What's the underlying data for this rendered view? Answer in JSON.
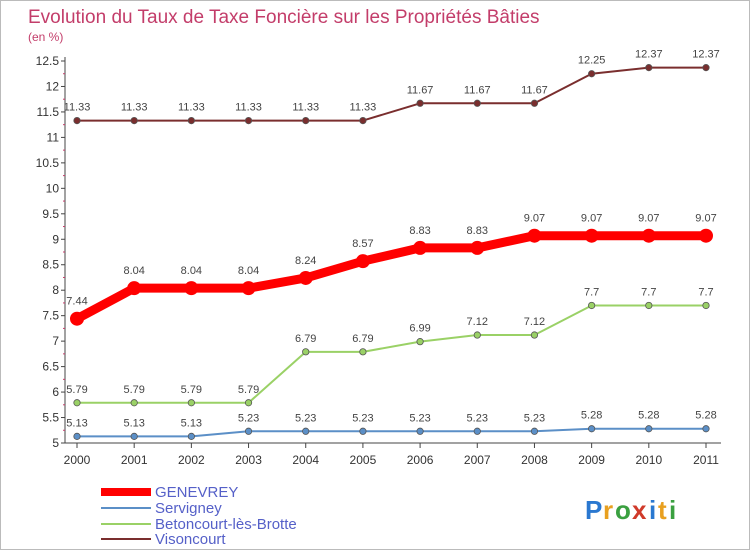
{
  "chart_data": {
    "type": "line",
    "title": "Evolution du Taux de Taxe Foncière sur les Propriétés Bâties",
    "ylabel": "(en %)",
    "xlabel": "",
    "ylim": [
      5,
      12.5
    ],
    "yticks": [
      "5",
      "5.5",
      "6",
      "6.5",
      "7",
      "7.5",
      "8",
      "8.5",
      "9",
      "9.5",
      "10",
      "10.5",
      "11",
      "11.5",
      "12",
      "12.5"
    ],
    "categories": [
      "2000",
      "2001",
      "2002",
      "2003",
      "2004",
      "2005",
      "2006",
      "2007",
      "2008",
      "2009",
      "2010",
      "2011"
    ],
    "series": [
      {
        "name": "GENEVREY",
        "color": "#ff0000",
        "values": [
          7.44,
          8.04,
          8.04,
          8.04,
          8.24,
          8.57,
          8.83,
          8.83,
          9.07,
          9.07,
          9.07,
          9.07
        ],
        "labels": [
          "7.44",
          "8.04",
          "8.04",
          "8.04",
          "8.24",
          "8.57",
          "8.83",
          "8.83",
          "9.07",
          "9.07",
          "9.07",
          "9.07"
        ]
      },
      {
        "name": "Servigney",
        "color": "#5b8fc7",
        "values": [
          5.13,
          5.13,
          5.13,
          5.23,
          5.23,
          5.23,
          5.23,
          5.23,
          5.23,
          5.28,
          5.28,
          5.28
        ],
        "labels": [
          "5.13",
          "5.13",
          "5.13",
          "5.23",
          "5.23",
          "5.23",
          "5.23",
          "5.23",
          "5.23",
          "5.28",
          "5.28",
          "5.28"
        ]
      },
      {
        "name": "Betoncourt-lès-Brotte",
        "color": "#9ad166",
        "values": [
          5.79,
          5.79,
          5.79,
          5.79,
          6.79,
          6.79,
          6.99,
          7.12,
          7.12,
          7.7,
          7.7,
          7.7
        ],
        "labels": [
          "5.79",
          "5.79",
          "5.79",
          "5.79",
          "6.79",
          "6.79",
          "6.99",
          "7.12",
          "7.12",
          "7.7",
          "7.7",
          "7.7"
        ]
      },
      {
        "name": "Visoncourt",
        "color": "#7a2e2e",
        "values": [
          11.33,
          11.33,
          11.33,
          11.33,
          11.33,
          11.33,
          11.67,
          11.67,
          11.67,
          12.25,
          12.37,
          12.37
        ],
        "labels": [
          "11.33",
          "11.33",
          "11.33",
          "11.33",
          "11.33",
          "11.33",
          "11.67",
          "11.67",
          "11.67",
          "12.25",
          "12.37",
          "12.37"
        ]
      }
    ],
    "legend_position": "bottom-left",
    "grid": false
  },
  "branding": {
    "logo_letters": [
      "P",
      "r",
      "o",
      "x",
      "i",
      "t",
      "i"
    ],
    "logo_colors": [
      "#2a78d0",
      "#e8a020",
      "#3aa040",
      "#d03a2a",
      "#2a78d0",
      "#e8a020",
      "#3aa040"
    ]
  }
}
